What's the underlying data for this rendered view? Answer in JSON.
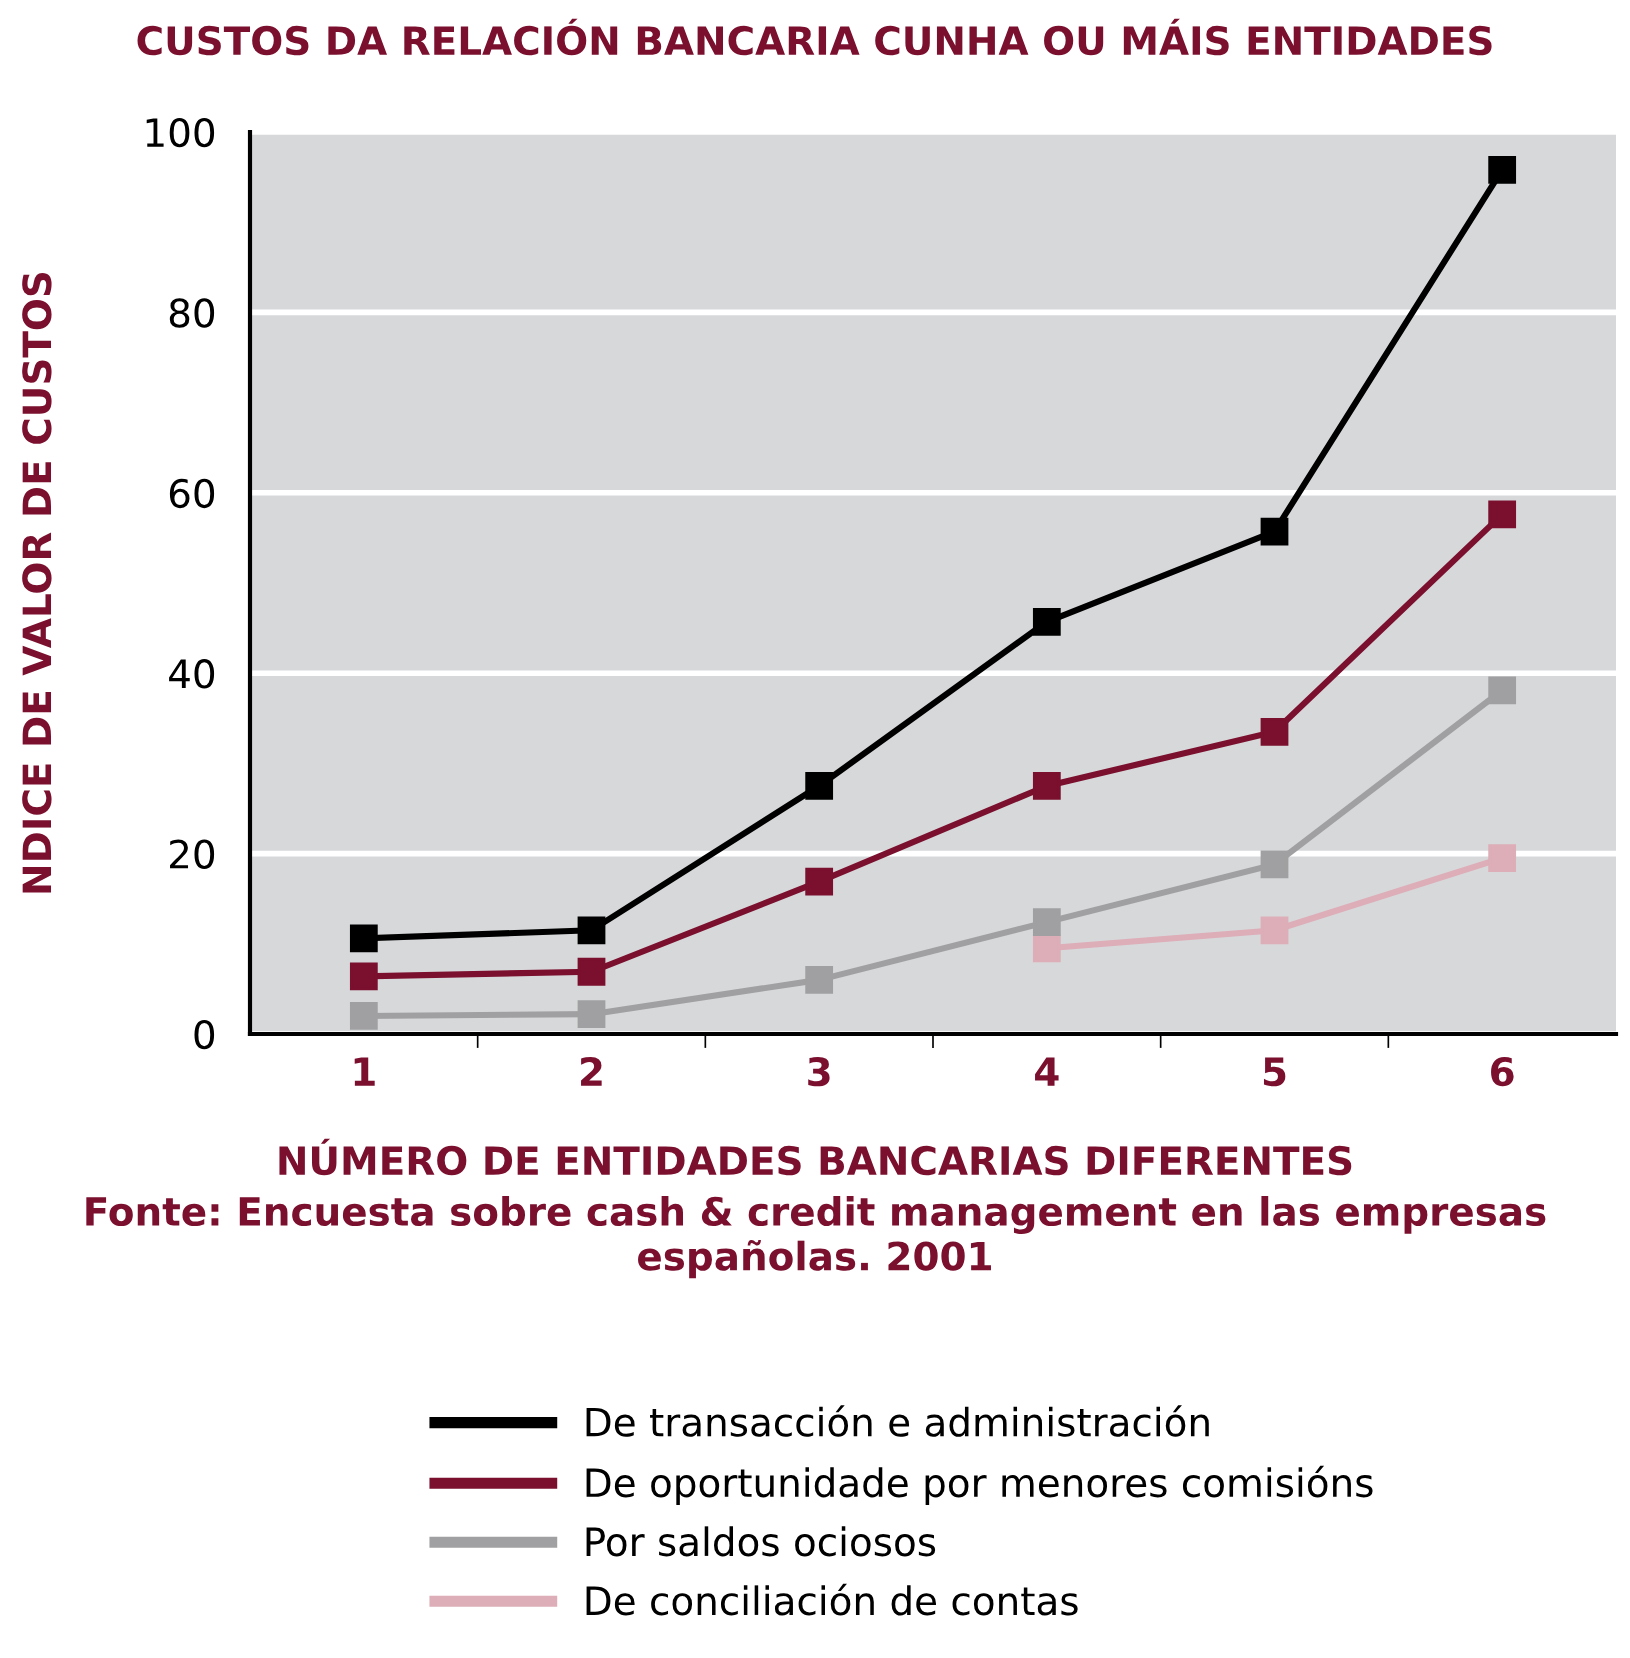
{
  "chart_data": {
    "type": "line",
    "title": "CUSTOS DA RELACIÓN BANCARIA CUNHA OU MÁIS ENTIDADES",
    "xlabel": "NÚMERO DE ENTIDADES BANCARIAS DIFERENTES",
    "ylabel": "NDICE DE VALOR DE CUSTOS",
    "annotations": [
      "Fonte: Encuesta sobre cash & credit management en las empresas españolas. 2001"
    ],
    "categories": [
      "1",
      "2",
      "3",
      "4",
      "5",
      "6"
    ],
    "series": [
      {
        "name": "De transacción e administración",
        "color": "#000000",
        "values": [
          10.6,
          11.5,
          27.5,
          45.7,
          55.7,
          95.8
        ]
      },
      {
        "name": "De oportunidade por menores comisións",
        "color": "#7a0f2e",
        "values": [
          6.4,
          6.9,
          16.9,
          27.5,
          33.5,
          57.6
        ]
      },
      {
        "name": "Por saldos ociosos",
        "color": "#a0a0a2",
        "values": [
          2.0,
          2.2,
          6.0,
          12.4,
          18.8,
          38.1
        ]
      },
      {
        "name": "De conciliación de contas",
        "color": "#ddadb8",
        "values": [
          null,
          null,
          null,
          9.5,
          11.5,
          19.5
        ]
      }
    ],
    "ylim": [
      0,
      100
    ],
    "yticks": [
      0,
      20,
      40,
      60,
      80,
      100
    ],
    "grid": "y",
    "legend": "bottom",
    "marker": "square",
    "line_style": "solid"
  }
}
